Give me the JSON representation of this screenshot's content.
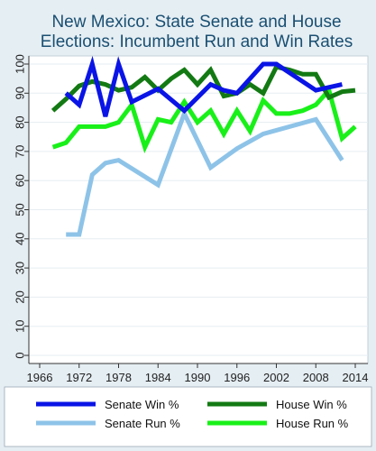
{
  "chart_data": {
    "type": "line",
    "title": [
      "New Mexico: State Senate and House",
      "Elections: Incumbent Run and Win Rates"
    ],
    "xlabel": "",
    "ylabel": "",
    "xlim": [
      1966,
      2014
    ],
    "ylim": [
      0,
      100
    ],
    "xticks": [
      1966,
      1972,
      1978,
      1984,
      1990,
      1996,
      2002,
      2008,
      2014
    ],
    "yticks": [
      0,
      10,
      20,
      30,
      40,
      50,
      60,
      70,
      80,
      90,
      100
    ],
    "grid": true,
    "legend_position": "bottom",
    "series": [
      {
        "name": "Senate Win %",
        "color": "#0a14e6",
        "points": [
          [
            1970,
            90
          ],
          [
            1972,
            86
          ],
          [
            1974,
            100
          ],
          [
            1976,
            82
          ],
          [
            1978,
            100
          ],
          [
            1980,
            87
          ],
          [
            1984,
            91.5
          ],
          [
            1988,
            84
          ],
          [
            1992,
            93
          ],
          [
            1994,
            91
          ],
          [
            1996,
            90
          ],
          [
            2000,
            100
          ],
          [
            2002,
            100
          ],
          [
            2004,
            97
          ],
          [
            2008,
            91
          ],
          [
            2010,
            92
          ],
          [
            2012,
            93
          ]
        ]
      },
      {
        "name": "House Win %",
        "color": "#137a13",
        "points": [
          [
            1968,
            84
          ],
          [
            1970,
            88
          ],
          [
            1972,
            92.5
          ],
          [
            1974,
            94
          ],
          [
            1976,
            93
          ],
          [
            1978,
            91
          ],
          [
            1980,
            92
          ],
          [
            1982,
            95.5
          ],
          [
            1984,
            91
          ],
          [
            1986,
            95
          ],
          [
            1988,
            98
          ],
          [
            1990,
            93
          ],
          [
            1992,
            98
          ],
          [
            1994,
            89
          ],
          [
            1996,
            90
          ],
          [
            1998,
            93
          ],
          [
            2000,
            90
          ],
          [
            2002,
            99
          ],
          [
            2004,
            98
          ],
          [
            2006,
            96.5
          ],
          [
            2008,
            96.5
          ],
          [
            2010,
            88.5
          ],
          [
            2012,
            90.5
          ],
          [
            2014,
            91
          ]
        ]
      },
      {
        "name": "Senate Run %",
        "color": "#8ec3e8",
        "points": [
          [
            1970,
            41.5
          ],
          [
            1972,
            41.5
          ],
          [
            1974,
            62
          ],
          [
            1976,
            66
          ],
          [
            1978,
            67
          ],
          [
            1984,
            58.5
          ],
          [
            1988,
            83
          ],
          [
            1992,
            64.5
          ],
          [
            1996,
            71
          ],
          [
            2000,
            76
          ],
          [
            2008,
            81
          ],
          [
            2012,
            67
          ]
        ]
      },
      {
        "name": "House Run %",
        "color": "#19f019",
        "points": [
          [
            1968,
            71.5
          ],
          [
            1970,
            73
          ],
          [
            1972,
            78.5
          ],
          [
            1974,
            78.5
          ],
          [
            1976,
            78.5
          ],
          [
            1978,
            80
          ],
          [
            1980,
            86
          ],
          [
            1982,
            71.5
          ],
          [
            1984,
            81
          ],
          [
            1986,
            80
          ],
          [
            1988,
            87
          ],
          [
            1990,
            80
          ],
          [
            1992,
            84
          ],
          [
            1994,
            76
          ],
          [
            1996,
            84
          ],
          [
            1998,
            77
          ],
          [
            2000,
            87.5
          ],
          [
            2002,
            83
          ],
          [
            2004,
            83
          ],
          [
            2006,
            84
          ],
          [
            2008,
            86
          ],
          [
            2010,
            91
          ],
          [
            2012,
            74.5
          ],
          [
            2014,
            78.5
          ]
        ]
      }
    ]
  }
}
